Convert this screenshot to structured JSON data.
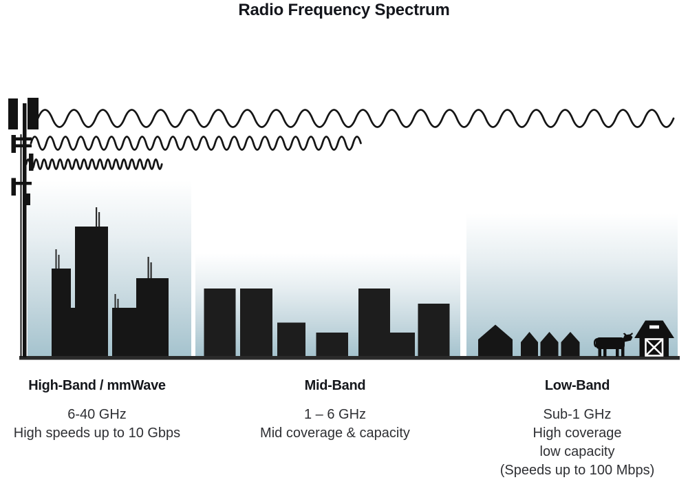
{
  "title": "Radio Frequency Spectrum",
  "bands": [
    {
      "name": "High-Band / mmWave",
      "frequency": "6-40 GHz",
      "lines": [
        "High speeds up to 10 Gbps"
      ]
    },
    {
      "name": "Mid-Band",
      "frequency": "1 – 6 GHz",
      "lines": [
        "Mid coverage & capacity"
      ]
    },
    {
      "name": "Low-Band",
      "frequency": "Sub-1 GHz",
      "lines": [
        "High coverage",
        "low capacity",
        "(Speeds up to 100 Mbps)"
      ]
    }
  ],
  "colors": {
    "ink": "#141414",
    "ground": "#2a2a2a",
    "sky_top": "#ffffff",
    "sky_bottom": "#a5c3ce",
    "heading_text": "#15171c",
    "body_text": "#2e2f33"
  }
}
